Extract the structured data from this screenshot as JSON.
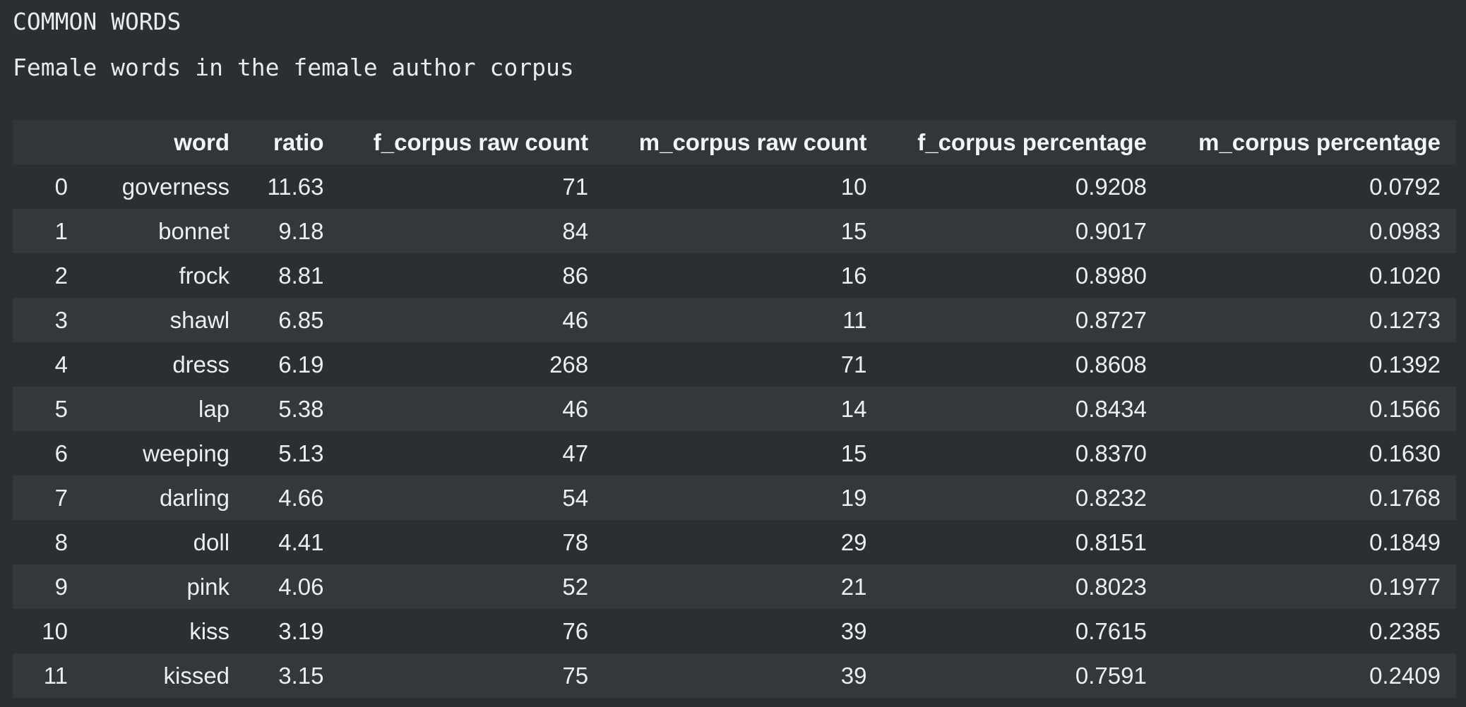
{
  "output": {
    "heading": "COMMON WORDS",
    "subheading": "Female words in the female author corpus"
  },
  "table": {
    "columns": [
      "",
      "word",
      "ratio",
      "f_corpus raw count",
      "m_corpus raw count",
      "f_corpus percentage",
      "m_corpus percentage"
    ],
    "rows": [
      [
        "0",
        "governess",
        "11.63",
        "71",
        "10",
        "0.9208",
        "0.0792"
      ],
      [
        "1",
        "bonnet",
        "9.18",
        "84",
        "15",
        "0.9017",
        "0.0983"
      ],
      [
        "2",
        "frock",
        "8.81",
        "86",
        "16",
        "0.8980",
        "0.1020"
      ],
      [
        "3",
        "shawl",
        "6.85",
        "46",
        "11",
        "0.8727",
        "0.1273"
      ],
      [
        "4",
        "dress",
        "6.19",
        "268",
        "71",
        "0.8608",
        "0.1392"
      ],
      [
        "5",
        "lap",
        "5.38",
        "46",
        "14",
        "0.8434",
        "0.1566"
      ],
      [
        "6",
        "weeping",
        "5.13",
        "47",
        "15",
        "0.8370",
        "0.1630"
      ],
      [
        "7",
        "darling",
        "4.66",
        "54",
        "19",
        "0.8232",
        "0.1768"
      ],
      [
        "8",
        "doll",
        "4.41",
        "78",
        "29",
        "0.8151",
        "0.1849"
      ],
      [
        "9",
        "pink",
        "4.06",
        "52",
        "21",
        "0.8023",
        "0.1977"
      ],
      [
        "10",
        "kiss",
        "3.19",
        "76",
        "39",
        "0.7615",
        "0.2385"
      ],
      [
        "11",
        "kissed",
        "3.15",
        "75",
        "39",
        "0.7591",
        "0.2409"
      ]
    ]
  }
}
